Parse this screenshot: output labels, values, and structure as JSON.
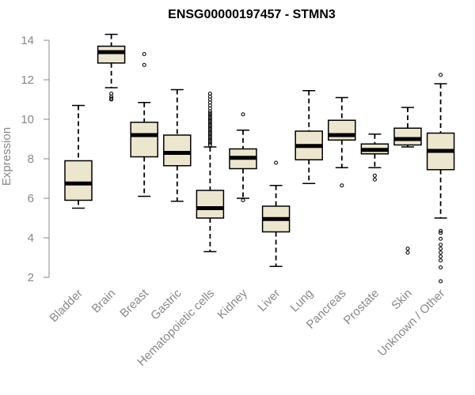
{
  "chart_data": {
    "type": "boxplot",
    "title": "ENSG00000197457 - STMN3",
    "xlabel": "",
    "ylabel": "Expression",
    "ylim": [
      1.5,
      14.5
    ],
    "yticks": [
      2,
      4,
      6,
      8,
      10,
      12,
      14
    ],
    "box_color": "#EDE6CF",
    "categories": [
      "Bladder",
      "Brain",
      "Breast",
      "Gastric",
      "Hematopoietic cells",
      "Kidney",
      "Liver",
      "Lung",
      "Pancreas",
      "Prostate",
      "Skin",
      "Unknown / Other"
    ],
    "boxes": [
      {
        "min": 5.5,
        "q1": 5.9,
        "median": 6.75,
        "q3": 7.9,
        "max": 10.7,
        "outliers": []
      },
      {
        "min": 11.6,
        "q1": 12.85,
        "median": 13.4,
        "q3": 13.7,
        "max": 14.3,
        "outliers": [
          11.3,
          11.15,
          11.05,
          11.0
        ]
      },
      {
        "min": 6.1,
        "q1": 8.1,
        "median": 9.2,
        "q3": 9.85,
        "max": 10.85,
        "outliers": [
          13.3,
          12.75
        ]
      },
      {
        "min": 5.85,
        "q1": 7.65,
        "median": 8.3,
        "q3": 9.2,
        "max": 11.5,
        "outliers": []
      },
      {
        "min": 3.3,
        "q1": 5.0,
        "median": 5.5,
        "q3": 6.4,
        "max": 8.6,
        "outliers": [
          8.7,
          8.8,
          8.9,
          9.0,
          9.1,
          9.2,
          9.3,
          9.4,
          9.5,
          9.6,
          9.7,
          9.8,
          9.9,
          10.0,
          10.1,
          10.2,
          10.3,
          10.4,
          10.55,
          10.7,
          10.85,
          11.0,
          11.15,
          11.3
        ]
      },
      {
        "min": 6.0,
        "q1": 7.5,
        "median": 8.05,
        "q3": 8.5,
        "max": 9.45,
        "outliers": [
          10.25,
          5.9
        ]
      },
      {
        "min": 2.55,
        "q1": 4.3,
        "median": 4.95,
        "q3": 5.6,
        "max": 6.65,
        "outliers": [
          7.8
        ]
      },
      {
        "min": 6.75,
        "q1": 7.95,
        "median": 8.65,
        "q3": 9.4,
        "max": 11.45,
        "outliers": []
      },
      {
        "min": 7.55,
        "q1": 8.95,
        "median": 9.2,
        "q3": 9.95,
        "max": 11.1,
        "outliers": [
          6.65
        ]
      },
      {
        "min": 7.55,
        "q1": 8.25,
        "median": 8.45,
        "q3": 8.75,
        "max": 9.25,
        "outliers": [
          7.15,
          6.95
        ]
      },
      {
        "min": 8.6,
        "q1": 8.7,
        "median": 9.0,
        "q3": 9.55,
        "max": 10.6,
        "outliers": [
          3.45,
          3.25
        ]
      },
      {
        "min": 5.0,
        "q1": 7.45,
        "median": 8.4,
        "q3": 9.3,
        "max": 11.8,
        "outliers": [
          12.25,
          4.35,
          4.25,
          3.95,
          3.65,
          3.45,
          3.25,
          3.05,
          2.85,
          2.5,
          1.8
        ]
      }
    ]
  }
}
